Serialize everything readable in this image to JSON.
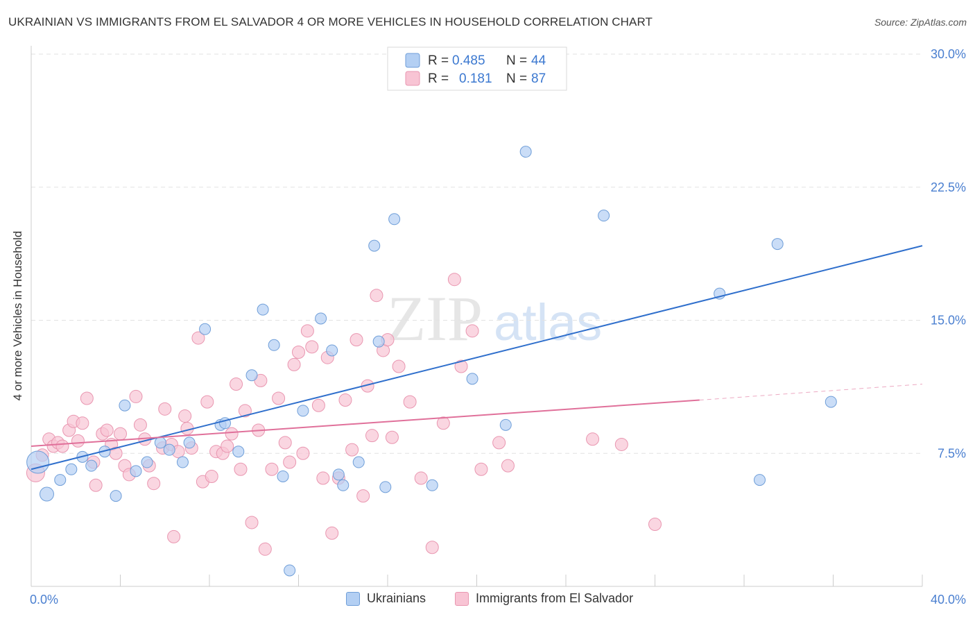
{
  "title": "UKRAINIAN VS IMMIGRANTS FROM EL SALVADOR 4 OR MORE VEHICLES IN HOUSEHOLD CORRELATION CHART",
  "source": "Source: ZipAtlas.com",
  "watermark": {
    "zip": "ZIP",
    "atlas": "atlas"
  },
  "colors": {
    "blue_fill": "#b3cff3",
    "blue_stroke": "#6f9ed8",
    "blue_line": "#2f6fcc",
    "pink_fill": "#f8c4d4",
    "pink_stroke": "#e996b0",
    "pink_line": "#e0709a",
    "tick_label": "#4a7fd0",
    "grid": "#e2e2e2"
  },
  "legend_top": [
    {
      "r_label": "R = ",
      "r_value": "0.485",
      "n_label": "N = ",
      "n_value": "44"
    },
    {
      "r_label": "R = ",
      "r_value": "0.181",
      "n_label": "N = ",
      "n_value": "87"
    }
  ],
  "chart_data": {
    "type": "scatter",
    "title": "UKRAINIAN VS IMMIGRANTS FROM EL SALVADOR 4 OR MORE VEHICLES IN HOUSEHOLD CORRELATION CHART",
    "xlabel": "",
    "ylabel": "4 or more Vehicles in Household",
    "xlim": [
      0,
      40
    ],
    "ylim": [
      0,
      30
    ],
    "x_tick_labels": [
      "0.0%",
      "40.0%"
    ],
    "y_ticks": [
      7.5,
      15.0,
      22.5,
      30.0
    ],
    "y_tick_labels": [
      "7.5%",
      "15.0%",
      "22.5%",
      "30.0%"
    ],
    "grid": true,
    "legend_position": "top-center",
    "series": [
      {
        "name": "Ukrainians",
        "R": 0.485,
        "N": 44,
        "trend": {
          "x": [
            0,
            40
          ],
          "y": [
            6.6,
            19.2
          ]
        },
        "points": [
          [
            0.3,
            7.0,
            16
          ],
          [
            0.7,
            5.2,
            10
          ],
          [
            1.3,
            6.0,
            8
          ],
          [
            1.8,
            6.6,
            8
          ],
          [
            2.3,
            7.3,
            8
          ],
          [
            2.7,
            6.8,
            8
          ],
          [
            3.3,
            7.6,
            8
          ],
          [
            3.8,
            5.1,
            8
          ],
          [
            4.2,
            10.2,
            8
          ],
          [
            4.7,
            6.5,
            8
          ],
          [
            5.2,
            7.0,
            8
          ],
          [
            5.8,
            8.1,
            8
          ],
          [
            6.2,
            7.7,
            8
          ],
          [
            6.8,
            7.0,
            8
          ],
          [
            7.1,
            8.1,
            8
          ],
          [
            7.8,
            14.5,
            8
          ],
          [
            8.5,
            9.1,
            8
          ],
          [
            8.7,
            9.2,
            8
          ],
          [
            9.3,
            7.6,
            8
          ],
          [
            9.9,
            11.9,
            8
          ],
          [
            10.4,
            15.6,
            8
          ],
          [
            10.9,
            13.6,
            8
          ],
          [
            11.3,
            6.2,
            8
          ],
          [
            11.6,
            0.9,
            8
          ],
          [
            12.2,
            9.9,
            8
          ],
          [
            13.0,
            15.1,
            8
          ],
          [
            13.5,
            13.3,
            8
          ],
          [
            13.8,
            6.3,
            8
          ],
          [
            14.0,
            5.7,
            8
          ],
          [
            14.7,
            7.0,
            8
          ],
          [
            15.4,
            19.2,
            8
          ],
          [
            15.6,
            13.8,
            8
          ],
          [
            15.9,
            5.6,
            8
          ],
          [
            16.3,
            20.7,
            8
          ],
          [
            18.0,
            5.7,
            8
          ],
          [
            19.8,
            11.7,
            8
          ],
          [
            21.3,
            9.1,
            8
          ],
          [
            22.2,
            24.5,
            8
          ],
          [
            25.7,
            20.9,
            8
          ],
          [
            30.9,
            16.5,
            8
          ],
          [
            32.7,
            6.0,
            8
          ],
          [
            33.5,
            19.3,
            8
          ],
          [
            35.9,
            10.4,
            8
          ]
        ]
      },
      {
        "name": "Immigrants from El Salvador",
        "R": 0.181,
        "N": 87,
        "trend": {
          "x": [
            0,
            30
          ],
          "y": [
            7.9,
            10.5
          ]
        },
        "trend_dashed": {
          "x": [
            30,
            40
          ],
          "y": [
            10.5,
            11.4
          ]
        },
        "points": [
          [
            0.2,
            6.4,
            13
          ],
          [
            0.5,
            7.4,
            9
          ],
          [
            0.8,
            8.3,
            9
          ],
          [
            1.0,
            7.9,
            9
          ],
          [
            1.2,
            8.1,
            9
          ],
          [
            1.4,
            7.9,
            9
          ],
          [
            1.7,
            8.8,
            9
          ],
          [
            1.9,
            9.3,
            9
          ],
          [
            2.1,
            8.2,
            9
          ],
          [
            2.3,
            9.2,
            9
          ],
          [
            2.5,
            10.6,
            9
          ],
          [
            2.8,
            7.0,
            9
          ],
          [
            2.9,
            5.7,
            9
          ],
          [
            3.2,
            8.6,
            9
          ],
          [
            3.4,
            8.8,
            9
          ],
          [
            3.6,
            8.0,
            9
          ],
          [
            3.8,
            7.5,
            9
          ],
          [
            4.0,
            8.6,
            9
          ],
          [
            4.2,
            6.8,
            9
          ],
          [
            4.4,
            6.3,
            9
          ],
          [
            4.7,
            10.7,
            9
          ],
          [
            4.9,
            9.1,
            9
          ],
          [
            5.1,
            8.3,
            9
          ],
          [
            5.3,
            6.8,
            9
          ],
          [
            5.5,
            5.8,
            9
          ],
          [
            5.9,
            7.8,
            9
          ],
          [
            6.0,
            10.0,
            9
          ],
          [
            6.3,
            8.0,
            9
          ],
          [
            6.4,
            2.8,
            9
          ],
          [
            6.6,
            7.6,
            9
          ],
          [
            6.9,
            9.6,
            9
          ],
          [
            7.0,
            8.9,
            9
          ],
          [
            7.2,
            7.8,
            9
          ],
          [
            7.5,
            14.0,
            9
          ],
          [
            7.7,
            5.9,
            9
          ],
          [
            7.9,
            10.4,
            9
          ],
          [
            8.1,
            6.2,
            9
          ],
          [
            8.3,
            7.6,
            9
          ],
          [
            8.6,
            7.5,
            9
          ],
          [
            8.8,
            7.9,
            9
          ],
          [
            9.0,
            8.6,
            9
          ],
          [
            9.2,
            11.4,
            9
          ],
          [
            9.4,
            6.6,
            9
          ],
          [
            9.6,
            9.9,
            9
          ],
          [
            9.9,
            3.6,
            9
          ],
          [
            10.2,
            8.8,
            9
          ],
          [
            10.3,
            11.6,
            9
          ],
          [
            10.5,
            2.1,
            9
          ],
          [
            10.8,
            6.6,
            9
          ],
          [
            11.1,
            10.6,
            9
          ],
          [
            11.4,
            8.1,
            9
          ],
          [
            11.6,
            7.0,
            9
          ],
          [
            11.8,
            12.5,
            9
          ],
          [
            12.0,
            13.2,
            9
          ],
          [
            12.2,
            7.5,
            9
          ],
          [
            12.4,
            14.4,
            9
          ],
          [
            12.6,
            13.5,
            9
          ],
          [
            12.9,
            10.2,
            9
          ],
          [
            13.1,
            6.1,
            9
          ],
          [
            13.3,
            12.9,
            9
          ],
          [
            13.5,
            3.0,
            9
          ],
          [
            13.8,
            6.1,
            9
          ],
          [
            14.1,
            10.5,
            9
          ],
          [
            14.4,
            7.7,
            9
          ],
          [
            14.6,
            13.9,
            9
          ],
          [
            14.9,
            5.1,
            9
          ],
          [
            15.1,
            11.3,
            9
          ],
          [
            15.3,
            8.5,
            9
          ],
          [
            15.5,
            16.4,
            9
          ],
          [
            15.8,
            13.3,
            9
          ],
          [
            16.0,
            13.9,
            9
          ],
          [
            16.2,
            8.4,
            9
          ],
          [
            16.5,
            12.4,
            9
          ],
          [
            17.0,
            10.4,
            9
          ],
          [
            17.5,
            6.1,
            9
          ],
          [
            18.0,
            2.2,
            9
          ],
          [
            18.5,
            9.2,
            9
          ],
          [
            19.0,
            17.3,
            9
          ],
          [
            19.3,
            12.4,
            9
          ],
          [
            19.8,
            14.4,
            9
          ],
          [
            20.2,
            6.6,
            9
          ],
          [
            21.0,
            8.1,
            9
          ],
          [
            21.4,
            6.8,
            9
          ],
          [
            25.2,
            8.3,
            9
          ],
          [
            26.5,
            8.0,
            9
          ],
          [
            28.0,
            3.5,
            9
          ]
        ]
      }
    ]
  }
}
